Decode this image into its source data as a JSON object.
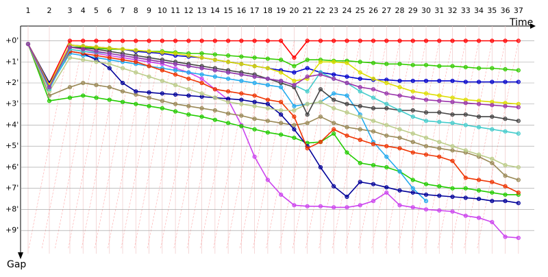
{
  "chart_data": {
    "type": "line",
    "x_label": "Time",
    "y_label": "Gap",
    "categories": [
      "1",
      "2",
      "3",
      "4",
      "5",
      "6",
      "7",
      "8",
      "9",
      "10",
      "11",
      "12",
      "13",
      "14",
      "15",
      "16",
      "17",
      "18",
      "19",
      "20",
      "21",
      "22",
      "23",
      "24",
      "25",
      "26",
      "27",
      "28",
      "29",
      "30",
      "31",
      "32",
      "33",
      "34",
      "35",
      "36",
      "37"
    ],
    "ylim": [
      -0.7,
      10.1
    ],
    "yticks": [
      {
        "value": 0,
        "label": "+0'"
      },
      {
        "value": 1,
        "label": "+1'"
      },
      {
        "value": 2,
        "label": "+2'"
      },
      {
        "value": 3,
        "label": "+3'"
      },
      {
        "value": 4,
        "label": "+4'"
      },
      {
        "value": 5,
        "label": "+5'"
      },
      {
        "value": 6,
        "label": "+6'"
      },
      {
        "value": 7,
        "label": "+7'"
      },
      {
        "value": 8,
        "label": "+8'"
      },
      {
        "value": 9,
        "label": "+9'"
      }
    ],
    "grid": true,
    "series": [
      {
        "color": "#ff0000",
        "values": [
          0.15,
          2.0,
          0,
          0,
          0,
          0,
          0,
          0,
          0,
          0,
          0,
          0,
          0,
          0,
          0,
          0,
          0,
          0,
          0,
          0.8,
          0,
          0,
          0,
          0,
          0,
          0,
          0,
          0,
          0,
          0,
          0,
          0,
          0,
          0,
          0,
          0,
          0
        ]
      },
      {
        "color": "#33cc00",
        "values": [
          0.15,
          2.3,
          0.3,
          0.3,
          0.35,
          0.4,
          0.4,
          0.45,
          0.5,
          0.5,
          0.55,
          0.6,
          0.6,
          0.65,
          0.7,
          0.75,
          0.8,
          0.85,
          0.9,
          1.2,
          0.9,
          0.9,
          0.95,
          0.95,
          1.0,
          1.05,
          1.1,
          1.1,
          1.15,
          1.15,
          1.2,
          1.2,
          1.25,
          1.3,
          1.3,
          1.35,
          1.4
        ]
      },
      {
        "color": "#0000cc",
        "values": [
          0.15,
          2.1,
          0.2,
          0.25,
          0.3,
          0.35,
          0.4,
          0.5,
          0.55,
          0.6,
          0.7,
          0.75,
          0.8,
          0.9,
          1.0,
          1.1,
          1.2,
          1.3,
          1.4,
          1.5,
          1.3,
          1.5,
          1.6,
          1.7,
          1.8,
          1.85,
          1.85,
          1.9,
          1.9,
          1.9,
          1.9,
          1.9,
          1.95,
          1.95,
          1.95,
          1.95,
          1.95
        ]
      },
      {
        "color": "#cc44ee",
        "values": [
          0.15,
          2.2,
          0.4,
          0.5,
          0.6,
          0.7,
          0.8,
          0.9,
          1.0,
          1.1,
          1.3,
          1.5,
          1.8,
          2.3,
          2.8,
          4.0,
          5.5,
          6.6,
          7.3,
          7.8,
          7.85,
          7.85,
          7.9,
          7.9,
          7.8,
          7.6,
          7.2,
          7.8,
          7.9,
          8.0,
          8.05,
          8.1,
          8.3,
          8.4,
          8.6,
          9.3,
          9.35
        ]
      },
      {
        "color": "#22cc00",
        "values": [
          0.15,
          2.85,
          2.7,
          2.6,
          2.7,
          2.8,
          2.9,
          3.0,
          3.1,
          3.2,
          3.35,
          3.5,
          3.6,
          3.75,
          3.9,
          4.05,
          4.2,
          4.35,
          4.45,
          4.6,
          4.85,
          4.8,
          4.4,
          5.3,
          5.8,
          5.9,
          6.0,
          6.2,
          6.6,
          6.8,
          6.9,
          7.0,
          7.0,
          7.1,
          7.2,
          7.3,
          7.3
        ]
      },
      {
        "color": "#998855",
        "values": [
          0.15,
          2.6,
          2.2,
          2.0,
          2.1,
          2.2,
          2.4,
          2.55,
          2.7,
          2.85,
          3.0,
          3.1,
          3.2,
          3.3,
          3.45,
          3.55,
          3.7,
          3.8,
          3.9,
          4.0,
          3.9,
          3.6,
          3.9,
          4.1,
          4.2,
          4.3,
          4.5,
          4.6,
          4.8,
          5.0,
          5.1,
          5.2,
          5.3,
          5.5,
          5.8,
          6.4,
          6.6
        ]
      },
      {
        "color": "#22aaee",
        "values": [
          0.15,
          2.2,
          0.6,
          0.7,
          0.8,
          0.9,
          1.0,
          1.1,
          1.2,
          1.3,
          1.4,
          1.5,
          1.6,
          1.7,
          1.8,
          1.9,
          2.0,
          2.1,
          2.2,
          3.1,
          3.0,
          2.9,
          2.5,
          2.6,
          3.5,
          4.8,
          5.5,
          6.2,
          7.0,
          7.6,
          null,
          null,
          null,
          null,
          null,
          null,
          null
        ]
      },
      {
        "color": "#000099",
        "values": [
          0.15,
          2.0,
          0.5,
          0.6,
          0.9,
          1.3,
          2.0,
          2.4,
          2.45,
          2.5,
          2.55,
          2.6,
          2.65,
          2.7,
          2.75,
          2.8,
          2.9,
          3.0,
          3.5,
          4.2,
          5.0,
          6.0,
          6.9,
          7.4,
          6.7,
          6.8,
          6.95,
          7.1,
          7.2,
          7.3,
          7.35,
          7.4,
          7.45,
          7.5,
          7.6,
          7.6,
          7.7
        ]
      },
      {
        "color": "#ee3300",
        "values": [
          0.15,
          2.1,
          0.5,
          0.6,
          0.7,
          0.8,
          0.9,
          1.0,
          1.2,
          1.4,
          1.6,
          1.8,
          2.0,
          2.3,
          2.4,
          2.5,
          2.6,
          2.8,
          2.9,
          3.6,
          5.1,
          4.8,
          4.2,
          4.5,
          4.7,
          4.9,
          5.0,
          5.1,
          5.3,
          5.4,
          5.5,
          5.7,
          6.5,
          6.6,
          6.7,
          6.9,
          7.2
        ]
      },
      {
        "color": "#bbcc88",
        "values": [
          0.15,
          2.4,
          0.8,
          0.9,
          1.0,
          1.1,
          1.3,
          1.5,
          1.7,
          1.9,
          2.1,
          2.3,
          2.5,
          2.7,
          2.9,
          3.0,
          3.1,
          3.2,
          3.3,
          3.3,
          3.0,
          2.9,
          3.2,
          3.4,
          3.6,
          3.8,
          4.0,
          4.2,
          4.4,
          4.6,
          4.8,
          5.0,
          5.2,
          5.4,
          5.6,
          5.9,
          6.0
        ]
      },
      {
        "color": "#444444",
        "values": [
          0.15,
          2.2,
          0.3,
          0.35,
          0.4,
          0.5,
          0.6,
          0.7,
          0.8,
          0.9,
          1.0,
          1.1,
          1.2,
          1.3,
          1.4,
          1.5,
          1.6,
          1.8,
          2.0,
          2.2,
          3.5,
          2.3,
          2.8,
          3.0,
          3.1,
          3.2,
          3.2,
          3.3,
          3.3,
          3.4,
          3.4,
          3.5,
          3.5,
          3.6,
          3.6,
          3.7,
          3.8
        ]
      },
      {
        "color": "#dddd00",
        "values": [
          0.15,
          2.1,
          0.2,
          0.25,
          0.3,
          0.35,
          0.4,
          0.45,
          0.5,
          0.55,
          0.6,
          0.7,
          0.8,
          0.9,
          1.0,
          1.1,
          1.2,
          1.3,
          1.5,
          1.9,
          1.8,
          1.0,
          1.0,
          1.05,
          1.5,
          1.8,
          2.0,
          2.2,
          2.4,
          2.5,
          2.6,
          2.7,
          2.8,
          2.85,
          2.9,
          2.95,
          3.0
        ]
      },
      {
        "color": "#44cccc",
        "values": [
          0.15,
          2.3,
          0.4,
          0.5,
          0.55,
          0.6,
          0.7,
          0.8,
          0.9,
          1.0,
          1.1,
          1.2,
          1.3,
          1.4,
          1.5,
          1.6,
          1.7,
          1.8,
          1.9,
          2.1,
          2.4,
          1.5,
          1.8,
          2.0,
          2.4,
          2.7,
          3.0,
          3.3,
          3.6,
          3.8,
          3.85,
          3.9,
          4.0,
          4.1,
          4.2,
          4.3,
          4.4
        ]
      },
      {
        "color": "#9933aa",
        "values": [
          0.15,
          2.2,
          0.3,
          0.4,
          0.5,
          0.6,
          0.7,
          0.8,
          0.9,
          1.0,
          1.1,
          1.2,
          1.3,
          1.4,
          1.5,
          1.6,
          1.7,
          1.8,
          1.9,
          2.1,
          1.7,
          1.6,
          1.8,
          2.0,
          2.2,
          2.3,
          2.5,
          2.6,
          2.7,
          2.8,
          2.85,
          2.9,
          2.95,
          3.0,
          3.05,
          3.1,
          3.15
        ]
      }
    ]
  }
}
